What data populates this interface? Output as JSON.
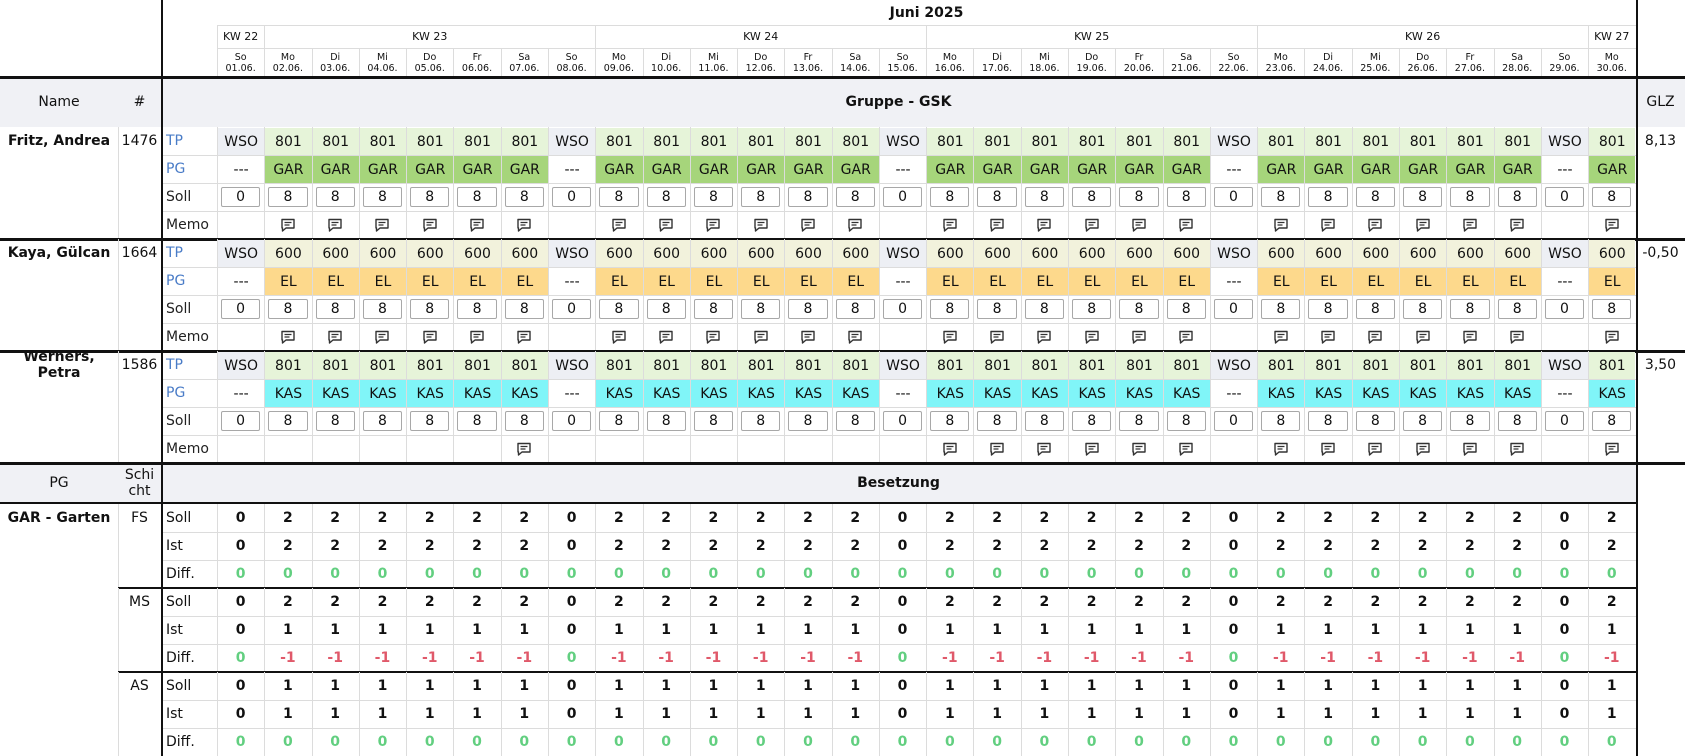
{
  "month": "Juni 2025",
  "weeks": [
    {
      "label": "KW 22",
      "days": [
        {
          "wd": "So",
          "date": "01.06."
        }
      ]
    },
    {
      "label": "KW 23",
      "days": [
        {
          "wd": "Mo",
          "date": "02.06."
        },
        {
          "wd": "Di",
          "date": "03.06."
        },
        {
          "wd": "Mi",
          "date": "04.06."
        },
        {
          "wd": "Do",
          "date": "05.06."
        },
        {
          "wd": "Fr",
          "date": "06.06."
        },
        {
          "wd": "Sa",
          "date": "07.06."
        },
        {
          "wd": "So",
          "date": "08.06."
        }
      ]
    },
    {
      "label": "KW 24",
      "days": [
        {
          "wd": "Mo",
          "date": "09.06."
        },
        {
          "wd": "Di",
          "date": "10.06."
        },
        {
          "wd": "Mi",
          "date": "11.06."
        },
        {
          "wd": "Do",
          "date": "12.06."
        },
        {
          "wd": "Fr",
          "date": "13.06."
        },
        {
          "wd": "Sa",
          "date": "14.06."
        },
        {
          "wd": "So",
          "date": "15.06."
        }
      ]
    },
    {
      "label": "KW 25",
      "days": [
        {
          "wd": "Mo",
          "date": "16.06."
        },
        {
          "wd": "Di",
          "date": "17.06."
        },
        {
          "wd": "Mi",
          "date": "18.06."
        },
        {
          "wd": "Do",
          "date": "19.06."
        },
        {
          "wd": "Fr",
          "date": "20.06."
        },
        {
          "wd": "Sa",
          "date": "21.06."
        },
        {
          "wd": "So",
          "date": "22.06."
        }
      ]
    },
    {
      "label": "KW 26",
      "days": [
        {
          "wd": "Mo",
          "date": "23.06."
        },
        {
          "wd": "Di",
          "date": "24.06."
        },
        {
          "wd": "Mi",
          "date": "25.06."
        },
        {
          "wd": "Do",
          "date": "26.06."
        },
        {
          "wd": "Fr",
          "date": "27.06."
        },
        {
          "wd": "Sa",
          "date": "28.06."
        },
        {
          "wd": "So",
          "date": "29.06."
        }
      ]
    },
    {
      "label": "KW 27",
      "days": [
        {
          "wd": "Mo",
          "date": "30.06."
        }
      ]
    }
  ],
  "header": {
    "name": "Name",
    "number": "#",
    "group": "Gruppe - GSK",
    "glz": "GLZ"
  },
  "cell_colors": {
    "WSO": "#edeff4",
    "801": "#e6f4d9",
    "600": "#f2f2dc",
    "GAR": "#a6d57b",
    "EL": "#fdd98c",
    "KAS": "#80f5f8"
  },
  "employees": [
    {
      "name": "Fritz, Andrea",
      "number": "1476",
      "glz": "8,13",
      "rows": [
        {
          "label": "TP",
          "label_color": "#4a7cc7",
          "values": [
            "WSO",
            "801",
            "801",
            "801",
            "801",
            "801",
            "801",
            "WSO",
            "801",
            "801",
            "801",
            "801",
            "801",
            "801",
            "WSO",
            "801",
            "801",
            "801",
            "801",
            "801",
            "801",
            "WSO",
            "801",
            "801",
            "801",
            "801",
            "801",
            "801",
            "WSO",
            "801"
          ]
        },
        {
          "label": "PG",
          "label_color": "#4a7cc7",
          "values": [
            "---",
            "GAR",
            "GAR",
            "GAR",
            "GAR",
            "GAR",
            "GAR",
            "---",
            "GAR",
            "GAR",
            "GAR",
            "GAR",
            "GAR",
            "GAR",
            "---",
            "GAR",
            "GAR",
            "GAR",
            "GAR",
            "GAR",
            "GAR",
            "---",
            "GAR",
            "GAR",
            "GAR",
            "GAR",
            "GAR",
            "GAR",
            "---",
            "GAR"
          ]
        },
        {
          "label": "Soll",
          "values": [
            0,
            8,
            8,
            8,
            8,
            8,
            8,
            0,
            8,
            8,
            8,
            8,
            8,
            8,
            0,
            8,
            8,
            8,
            8,
            8,
            8,
            0,
            8,
            8,
            8,
            8,
            8,
            8,
            0,
            8
          ]
        },
        {
          "label": "Memo",
          "memo": [
            false,
            true,
            true,
            true,
            true,
            true,
            true,
            false,
            true,
            true,
            true,
            true,
            true,
            true,
            false,
            true,
            true,
            true,
            true,
            true,
            true,
            false,
            true,
            true,
            true,
            true,
            true,
            true,
            false,
            true
          ]
        }
      ]
    },
    {
      "name": "Kaya, Gülcan",
      "number": "1664",
      "glz": "-0,50",
      "rows": [
        {
          "label": "TP",
          "label_color": "#4a7cc7",
          "values": [
            "WSO",
            "600",
            "600",
            "600",
            "600",
            "600",
            "600",
            "WSO",
            "600",
            "600",
            "600",
            "600",
            "600",
            "600",
            "WSO",
            "600",
            "600",
            "600",
            "600",
            "600",
            "600",
            "WSO",
            "600",
            "600",
            "600",
            "600",
            "600",
            "600",
            "WSO",
            "600"
          ]
        },
        {
          "label": "PG",
          "label_color": "#4a7cc7",
          "values": [
            "---",
            "EL",
            "EL",
            "EL",
            "EL",
            "EL",
            "EL",
            "---",
            "EL",
            "EL",
            "EL",
            "EL",
            "EL",
            "EL",
            "---",
            "EL",
            "EL",
            "EL",
            "EL",
            "EL",
            "EL",
            "---",
            "EL",
            "EL",
            "EL",
            "EL",
            "EL",
            "EL",
            "---",
            "EL"
          ]
        },
        {
          "label": "Soll",
          "values": [
            0,
            8,
            8,
            8,
            8,
            8,
            8,
            0,
            8,
            8,
            8,
            8,
            8,
            8,
            0,
            8,
            8,
            8,
            8,
            8,
            8,
            0,
            8,
            8,
            8,
            8,
            8,
            8,
            0,
            8
          ]
        },
        {
          "label": "Memo",
          "memo": [
            false,
            true,
            true,
            true,
            true,
            true,
            true,
            false,
            true,
            true,
            true,
            true,
            true,
            true,
            false,
            true,
            true,
            true,
            true,
            true,
            true,
            false,
            true,
            true,
            true,
            true,
            true,
            true,
            false,
            true
          ]
        }
      ]
    },
    {
      "name": "Werners, Petra",
      "number": "1586",
      "glz": "3,50",
      "rows": [
        {
          "label": "TP",
          "label_color": "#4a7cc7",
          "values": [
            "WSO",
            "801",
            "801",
            "801",
            "801",
            "801",
            "801",
            "WSO",
            "801",
            "801",
            "801",
            "801",
            "801",
            "801",
            "WSO",
            "801",
            "801",
            "801",
            "801",
            "801",
            "801",
            "WSO",
            "801",
            "801",
            "801",
            "801",
            "801",
            "801",
            "WSO",
            "801"
          ]
        },
        {
          "label": "PG",
          "label_color": "#4a7cc7",
          "values": [
            "---",
            "KAS",
            "KAS",
            "KAS",
            "KAS",
            "KAS",
            "KAS",
            "---",
            "KAS",
            "KAS",
            "KAS",
            "KAS",
            "KAS",
            "KAS",
            "---",
            "KAS",
            "KAS",
            "KAS",
            "KAS",
            "KAS",
            "KAS",
            "---",
            "KAS",
            "KAS",
            "KAS",
            "KAS",
            "KAS",
            "KAS",
            "---",
            "KAS"
          ]
        },
        {
          "label": "Soll",
          "values": [
            0,
            8,
            8,
            8,
            8,
            8,
            8,
            0,
            8,
            8,
            8,
            8,
            8,
            8,
            0,
            8,
            8,
            8,
            8,
            8,
            8,
            0,
            8,
            8,
            8,
            8,
            8,
            8,
            0,
            8
          ]
        },
        {
          "label": "Memo",
          "memo": [
            false,
            false,
            false,
            false,
            false,
            false,
            true,
            false,
            false,
            false,
            false,
            false,
            false,
            false,
            false,
            true,
            true,
            true,
            true,
            true,
            true,
            false,
            true,
            true,
            true,
            true,
            true,
            true,
            false,
            true
          ]
        }
      ]
    }
  ],
  "coverage": {
    "pg": "PG",
    "shift": "Schicht",
    "title": "Besetzung",
    "groups": [
      {
        "name": "GAR - Garten",
        "shifts": [
          {
            "name": "FS",
            "rows": [
              {
                "label": "Soll",
                "values": [
                  0,
                  2,
                  2,
                  2,
                  2,
                  2,
                  2,
                  0,
                  2,
                  2,
                  2,
                  2,
                  2,
                  2,
                  0,
                  2,
                  2,
                  2,
                  2,
                  2,
                  2,
                  0,
                  2,
                  2,
                  2,
                  2,
                  2,
                  2,
                  0,
                  2
                ]
              },
              {
                "label": "Ist",
                "values": [
                  0,
                  2,
                  2,
                  2,
                  2,
                  2,
                  2,
                  0,
                  2,
                  2,
                  2,
                  2,
                  2,
                  2,
                  0,
                  2,
                  2,
                  2,
                  2,
                  2,
                  2,
                  0,
                  2,
                  2,
                  2,
                  2,
                  2,
                  2,
                  0,
                  2
                ]
              },
              {
                "label": "Diff.",
                "values": [
                  0,
                  0,
                  0,
                  0,
                  0,
                  0,
                  0,
                  0,
                  0,
                  0,
                  0,
                  0,
                  0,
                  0,
                  0,
                  0,
                  0,
                  0,
                  0,
                  0,
                  0,
                  0,
                  0,
                  0,
                  0,
                  0,
                  0,
                  0,
                  0,
                  0
                ]
              }
            ]
          },
          {
            "name": "MS",
            "rows": [
              {
                "label": "Soll",
                "values": [
                  0,
                  2,
                  2,
                  2,
                  2,
                  2,
                  2,
                  0,
                  2,
                  2,
                  2,
                  2,
                  2,
                  2,
                  0,
                  2,
                  2,
                  2,
                  2,
                  2,
                  2,
                  0,
                  2,
                  2,
                  2,
                  2,
                  2,
                  2,
                  0,
                  2
                ]
              },
              {
                "label": "Ist",
                "values": [
                  0,
                  1,
                  1,
                  1,
                  1,
                  1,
                  1,
                  0,
                  1,
                  1,
                  1,
                  1,
                  1,
                  1,
                  0,
                  1,
                  1,
                  1,
                  1,
                  1,
                  1,
                  0,
                  1,
                  1,
                  1,
                  1,
                  1,
                  1,
                  0,
                  1
                ]
              },
              {
                "label": "Diff.",
                "values": [
                  0,
                  -1,
                  -1,
                  -1,
                  -1,
                  -1,
                  -1,
                  0,
                  -1,
                  -1,
                  -1,
                  -1,
                  -1,
                  -1,
                  0,
                  -1,
                  -1,
                  -1,
                  -1,
                  -1,
                  -1,
                  0,
                  -1,
                  -1,
                  -1,
                  -1,
                  -1,
                  -1,
                  0,
                  -1
                ]
              }
            ]
          },
          {
            "name": "AS",
            "rows": [
              {
                "label": "Soll",
                "values": [
                  0,
                  1,
                  1,
                  1,
                  1,
                  1,
                  1,
                  0,
                  1,
                  1,
                  1,
                  1,
                  1,
                  1,
                  0,
                  1,
                  1,
                  1,
                  1,
                  1,
                  1,
                  0,
                  1,
                  1,
                  1,
                  1,
                  1,
                  1,
                  0,
                  1
                ]
              },
              {
                "label": "Ist",
                "values": [
                  0,
                  1,
                  1,
                  1,
                  1,
                  1,
                  1,
                  0,
                  1,
                  1,
                  1,
                  1,
                  1,
                  1,
                  0,
                  1,
                  1,
                  1,
                  1,
                  1,
                  1,
                  0,
                  1,
                  1,
                  1,
                  1,
                  1,
                  1,
                  0,
                  1
                ]
              },
              {
                "label": "Diff.",
                "values": [
                  0,
                  0,
                  0,
                  0,
                  0,
                  0,
                  0,
                  0,
                  0,
                  0,
                  0,
                  0,
                  0,
                  0,
                  0,
                  0,
                  0,
                  0,
                  0,
                  0,
                  0,
                  0,
                  0,
                  0,
                  0,
                  0,
                  0,
                  0,
                  0,
                  0
                ]
              }
            ]
          }
        ]
      }
    ]
  }
}
